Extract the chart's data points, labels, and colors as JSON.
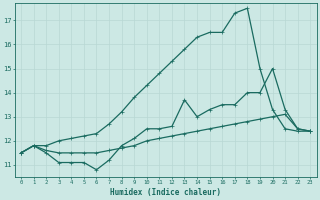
{
  "title": "",
  "xlabel": "Humidex (Indice chaleur)",
  "bg_color": "#cce8e4",
  "grid_color": "#b8d8d4",
  "line_color": "#1a6b60",
  "x_values": [
    0,
    1,
    2,
    3,
    4,
    5,
    6,
    7,
    8,
    9,
    10,
    11,
    12,
    13,
    14,
    15,
    16,
    17,
    18,
    19,
    20,
    21,
    22,
    23
  ],
  "series1": [
    11.5,
    11.8,
    11.5,
    11.1,
    11.1,
    11.1,
    10.8,
    11.2,
    11.8,
    12.1,
    12.5,
    12.5,
    12.6,
    13.7,
    13.0,
    13.3,
    13.5,
    13.5,
    14.0,
    14.0,
    15.0,
    13.3,
    12.5,
    12.4
  ],
  "series2": [
    11.5,
    11.8,
    11.6,
    11.5,
    11.5,
    11.5,
    11.5,
    11.6,
    11.7,
    11.8,
    12.0,
    12.1,
    12.2,
    12.3,
    12.4,
    12.5,
    12.6,
    12.7,
    12.8,
    12.9,
    13.0,
    13.1,
    12.5,
    12.4
  ],
  "series3": [
    11.5,
    11.8,
    11.8,
    12.0,
    12.1,
    12.2,
    12.3,
    12.7,
    13.2,
    13.8,
    14.3,
    14.8,
    15.3,
    15.8,
    16.3,
    16.5,
    16.5,
    17.3,
    17.5,
    15.0,
    13.3,
    12.5,
    12.4,
    12.4
  ],
  "ylim": [
    10.5,
    17.7
  ],
  "yticks": [
    11,
    12,
    13,
    14,
    15,
    16,
    17
  ],
  "xticks": [
    0,
    1,
    2,
    3,
    4,
    5,
    6,
    7,
    8,
    9,
    10,
    11,
    12,
    13,
    14,
    15,
    16,
    17,
    18,
    19,
    20,
    21,
    22,
    23
  ]
}
